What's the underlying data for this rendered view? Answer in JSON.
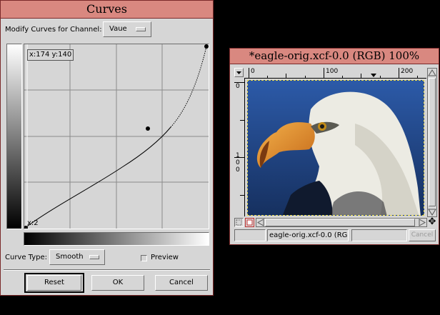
{
  "curves": {
    "title": "Curves",
    "channel_label": "Modify Curves for Channel:",
    "channel_value": "Vaue",
    "coords": "x:174 y:140",
    "cursor_x": "x:2",
    "curve_type_label": "Curve Type:",
    "curve_type_value": "Smooth",
    "preview_label": "Preview",
    "reset_label": "Reset",
    "ok_label": "OK",
    "cancel_label": "Cancel"
  },
  "image_window": {
    "title": "*eagle-orig.xcf-0.0 (RGB) 100%",
    "ruler_top": [
      "0",
      "100",
      "200"
    ],
    "ruler_left": [
      "0",
      "1",
      "0",
      "0"
    ],
    "status_text": "eagle-orig.xcf-0.0 (RG",
    "cancel_label": "Cancel"
  }
}
